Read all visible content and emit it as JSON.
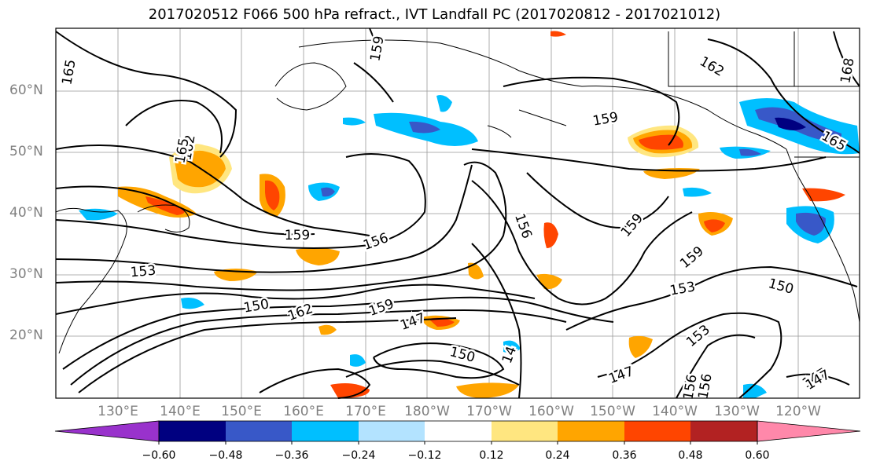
{
  "title": "2017020512 F066 500 hPa refract., IVT Landfall PC (2017020812 - 2017021012)",
  "lat_labels": [
    "60°N",
    "50°N",
    "40°N",
    "30°N",
    "20°N"
  ],
  "lon_labels": [
    "130°E",
    "140°E",
    "150°E",
    "160°E",
    "170°E",
    "180°W",
    "170°W",
    "160°W",
    "150°W",
    "140°W",
    "130°W",
    "120°W"
  ],
  "colorbar": {
    "ticks": [
      "−0.60",
      "−0.48",
      "−0.36",
      "−0.24",
      "−0.12",
      "0.12",
      "0.24",
      "0.36",
      "0.48",
      "0.60"
    ],
    "colors": [
      "#9932cc",
      "#000080",
      "#3858c8",
      "#00bfff",
      "#b3e3ff",
      "#ffffff",
      "#ffe680",
      "#ffa500",
      "#ff4500",
      "#b22222",
      "#ff88aa"
    ]
  },
  "contour_labels": [
    "165",
    "159",
    "162",
    "168",
    "159",
    "165",
    "165",
    "162",
    "159",
    "156",
    "153",
    "156",
    "159",
    "150",
    "162",
    "159",
    "147",
    "150",
    "147",
    "156",
    "159",
    "153",
    "150",
    "153",
    "147",
    "156",
    "147",
    "14"
  ],
  "colors": {
    "contour": "#000000",
    "coast": "#000000",
    "grid": "#999999",
    "axis_label": "#808080"
  }
}
